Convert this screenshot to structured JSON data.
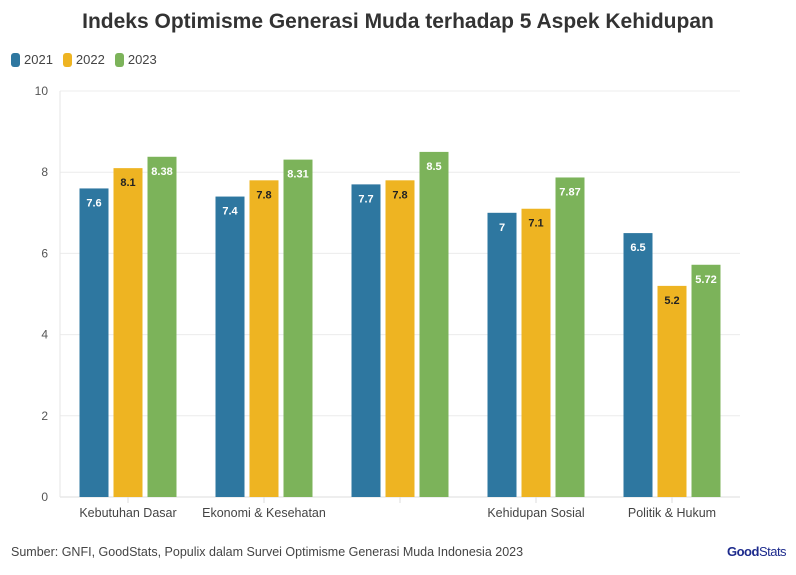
{
  "chart_data": {
    "type": "bar",
    "title": "Indeks Optimisme Generasi Muda terhadap 5 Aspek Kehidupan",
    "categories": [
      "Kebutuhan Dasar",
      "Ekonomi & Kesehatan",
      "",
      "Kehidupan Sosial",
      "Politik & Hukum"
    ],
    "series": [
      {
        "name": "2021",
        "color": "#2e77a0",
        "values": [
          7.6,
          7.4,
          7.7,
          7,
          6.5
        ]
      },
      {
        "name": "2022",
        "color": "#eeb422",
        "values": [
          8.1,
          7.8,
          7.8,
          7.1,
          5.2
        ]
      },
      {
        "name": "2023",
        "color": "#7cb35a",
        "values": [
          8.38,
          8.31,
          8.5,
          7.87,
          5.72
        ]
      }
    ],
    "ylim": [
      0,
      10
    ],
    "yticks": [
      0,
      2,
      4,
      6,
      8,
      10
    ],
    "grid": true,
    "legend": "top-left"
  },
  "source": "Sumber: GNFI, GoodStats, Populix dalam Survei Optimisme Generasi Muda Indonesia 2023",
  "logo": {
    "part1": "Good",
    "part2": "Stats"
  }
}
